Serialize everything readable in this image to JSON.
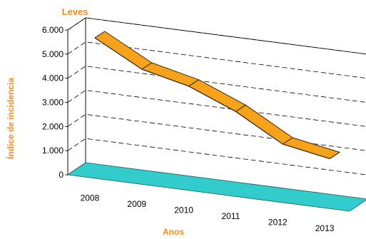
{
  "colors": {
    "line_fill": "#f7a21b",
    "line_stroke": "#3a2a10",
    "floor_fill": "#33cccc",
    "floor_stroke": "#1a5a5a",
    "title_color": "#f58a1f"
  },
  "chart_data": {
    "type": "line",
    "style": "3d-ribbon",
    "title": "Leves",
    "xlabel": "Anos",
    "ylabel": "Índice de incidencia",
    "categories": [
      "2008",
      "2009",
      "2010",
      "2011",
      "2012",
      "2013"
    ],
    "series": [
      {
        "values": [
          5700,
          4650,
          4200,
          3400,
          2300,
          1950
        ]
      }
    ],
    "ylim": [
      0,
      6000
    ],
    "yticks": [
      0,
      1000,
      2000,
      3000,
      4000,
      5000,
      6000
    ],
    "ytick_labels": [
      "0",
      "1.000",
      "2.000",
      "3.000",
      "4.000",
      "5.000",
      "6.000"
    ],
    "grid": true,
    "legend": "none"
  }
}
